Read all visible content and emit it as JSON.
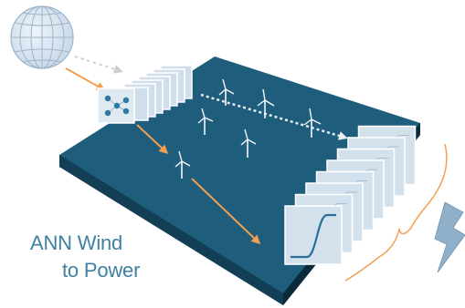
{
  "caption": {
    "line1": "ANN Wind",
    "line2": "to Power"
  },
  "icons": {
    "globe": "globe-icon",
    "neural_net": "neural-network-icon",
    "turbine": "wind-turbine-icon",
    "lightning": "lightning-bolt-icon",
    "brace": "curly-brace-icon"
  },
  "colors": {
    "ocean": "#1f5d7c",
    "ocean_side": "#0f3346",
    "arrow_orange": "#f0a050",
    "arrow_white": "#e8eef2",
    "caption": "#3e80a3",
    "panel": "#cfdeea",
    "lightning": "#8fb0c8"
  }
}
